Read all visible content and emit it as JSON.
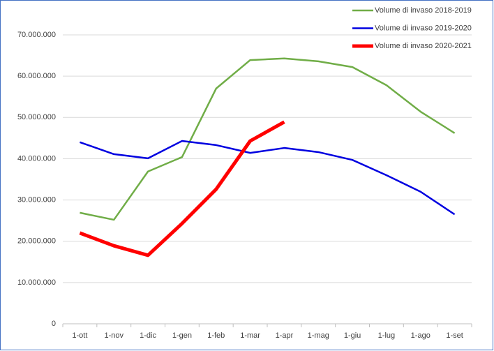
{
  "chart_data": {
    "type": "line",
    "categories": [
      "1-ott",
      "1-nov",
      "1-dic",
      "1-gen",
      "1-feb",
      "1-mar",
      "1-apr",
      "1-mag",
      "1-giu",
      "1-lug",
      "1-ago",
      "1-set"
    ],
    "series": [
      {
        "name": "Volume di invaso 2018-2019",
        "color": "#70ad47",
        "width": 2.5,
        "values": [
          26900000,
          25200000,
          36900000,
          40400000,
          57000000,
          63900000,
          64300000,
          63600000,
          62200000,
          57800000,
          51400000,
          46200000
        ]
      },
      {
        "name": "Volume di invaso 2019-2020",
        "color": "#0000e0",
        "width": 2.5,
        "values": [
          44000000,
          41100000,
          40100000,
          44300000,
          43300000,
          41400000,
          42600000,
          41600000,
          39700000,
          36000000,
          32000000,
          26500000
        ]
      },
      {
        "name": "Volume di invaso 2020-2021",
        "color": "#ff0000",
        "width": 5,
        "values": [
          22000000,
          18900000,
          16600000,
          24300000,
          32600000,
          44300000,
          48900000,
          null,
          null,
          null,
          null,
          null
        ]
      }
    ],
    "ylim": [
      0,
      70000000
    ],
    "yticks": [
      0,
      {
        "value": 10000000,
        "label": "10.000.000"
      },
      {
        "value": 20000000,
        "label": "20.000.000"
      },
      {
        "value": 30000000,
        "label": "30.000.000"
      },
      {
        "value": 40000000,
        "label": "40.000.000"
      },
      {
        "value": 50000000,
        "label": "50.000.000"
      },
      {
        "value": 60000000,
        "label": "60.000.000"
      },
      {
        "value": 70000000,
        "label": "70.000.000"
      }
    ],
    "grid": true,
    "legend": "top-right"
  }
}
